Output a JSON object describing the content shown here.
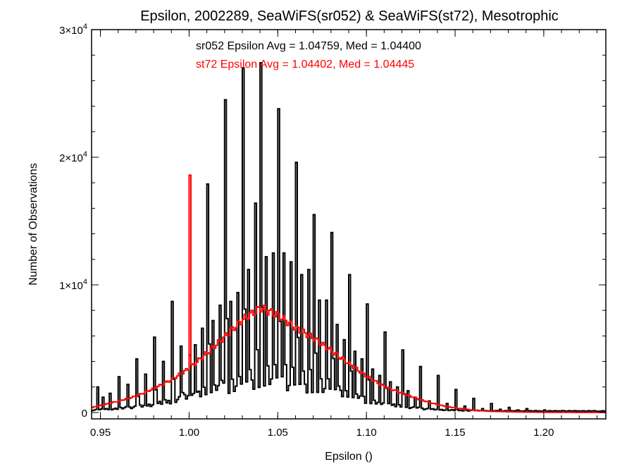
{
  "chart_data": {
    "type": "histogram",
    "title": "Epsilon, 2002289, SeaWiFS(sr052) & SeaWiFS(st72), Mesotrophic",
    "xlabel": "Epsilon ()",
    "ylabel": "Number of Observations",
    "xlim": [
      0.945,
      1.235
    ],
    "ylim": [
      -500,
      30000
    ],
    "xticks": [
      0.95,
      1.0,
      1.05,
      1.1,
      1.15,
      1.2
    ],
    "xtick_labels": [
      "0.95",
      "1.00",
      "1.05",
      "1.10",
      "1.15",
      "1.20"
    ],
    "yticks": [
      0,
      10000,
      20000,
      30000
    ],
    "ytick_labels": [
      {
        "base": "0",
        "exp": ""
      },
      {
        "base": "1×10",
        "exp": "4"
      },
      {
        "base": "2×10",
        "exp": "4"
      },
      {
        "base": "3×10",
        "exp": "4"
      }
    ],
    "annotations": [
      {
        "text": "sr052 Epsilon Avg = 1.04759, Med = 1.04400",
        "color": "#000000"
      },
      {
        "text": "st72 Epsilon Avg = 1.04402, Med = 1.04445",
        "color": "#ff0000"
      }
    ],
    "series": [
      {
        "name": "sr052",
        "color": "#000000",
        "bin_width": 0.001,
        "x_start": 0.945,
        "peaks": [
          {
            "x": 0.948,
            "y": 2000
          },
          {
            "x": 0.951,
            "y": 1200
          },
          {
            "x": 0.955,
            "y": 1500
          },
          {
            "x": 0.96,
            "y": 2800
          },
          {
            "x": 0.965,
            "y": 2200
          },
          {
            "x": 0.97,
            "y": 4200
          },
          {
            "x": 0.975,
            "y": 3000
          },
          {
            "x": 0.98,
            "y": 5900
          },
          {
            "x": 0.985,
            "y": 4000
          },
          {
            "x": 0.99,
            "y": 8700
          },
          {
            "x": 0.995,
            "y": 5200
          },
          {
            "x": 1.0,
            "y": 4500
          },
          {
            "x": 1.003,
            "y": 5300
          },
          {
            "x": 1.007,
            "y": 6600
          },
          {
            "x": 1.01,
            "y": 17900
          },
          {
            "x": 1.013,
            "y": 7200
          },
          {
            "x": 1.017,
            "y": 8400
          },
          {
            "x": 1.02,
            "y": 24500
          },
          {
            "x": 1.023,
            "y": 8700
          },
          {
            "x": 1.027,
            "y": 9400
          },
          {
            "x": 1.03,
            "y": 27000
          },
          {
            "x": 1.033,
            "y": 11200
          },
          {
            "x": 1.037,
            "y": 16400
          },
          {
            "x": 1.04,
            "y": 27400
          },
          {
            "x": 1.043,
            "y": 12200
          },
          {
            "x": 1.047,
            "y": 12500
          },
          {
            "x": 1.05,
            "y": 23800
          },
          {
            "x": 1.053,
            "y": 12500
          },
          {
            "x": 1.057,
            "y": 11800
          },
          {
            "x": 1.06,
            "y": 19600
          },
          {
            "x": 1.063,
            "y": 10800
          },
          {
            "x": 1.067,
            "y": 11200
          },
          {
            "x": 1.07,
            "y": 15500
          },
          {
            "x": 1.073,
            "y": 8800
          },
          {
            "x": 1.077,
            "y": 8800
          },
          {
            "x": 1.08,
            "y": 14100
          },
          {
            "x": 1.083,
            "y": 6900
          },
          {
            "x": 1.087,
            "y": 5700
          },
          {
            "x": 1.09,
            "y": 10800
          },
          {
            "x": 1.093,
            "y": 4800
          },
          {
            "x": 1.097,
            "y": 4200
          },
          {
            "x": 1.1,
            "y": 8500
          },
          {
            "x": 1.103,
            "y": 3400
          },
          {
            "x": 1.107,
            "y": 2900
          },
          {
            "x": 1.11,
            "y": 6300
          },
          {
            "x": 1.113,
            "y": 2400
          },
          {
            "x": 1.117,
            "y": 2000
          },
          {
            "x": 1.12,
            "y": 4900
          },
          {
            "x": 1.123,
            "y": 1700
          },
          {
            "x": 1.127,
            "y": 1200
          },
          {
            "x": 1.13,
            "y": 3600
          },
          {
            "x": 1.135,
            "y": 900
          },
          {
            "x": 1.14,
            "y": 2900
          },
          {
            "x": 1.145,
            "y": 700
          },
          {
            "x": 1.15,
            "y": 1800
          },
          {
            "x": 1.155,
            "y": 500
          },
          {
            "x": 1.16,
            "y": 1100
          },
          {
            "x": 1.165,
            "y": 300
          },
          {
            "x": 1.17,
            "y": 700
          },
          {
            "x": 1.175,
            "y": 250
          },
          {
            "x": 1.18,
            "y": 400
          },
          {
            "x": 1.185,
            "y": 200
          },
          {
            "x": 1.19,
            "y": 300
          },
          {
            "x": 1.2,
            "y": 200
          },
          {
            "x": 1.21,
            "y": 150
          },
          {
            "x": 1.22,
            "y": 120
          },
          {
            "x": 1.23,
            "y": 100
          }
        ]
      },
      {
        "name": "st72",
        "color": "#ff0000",
        "bin_width": 0.001,
        "x_start": 0.945,
        "curve": [
          {
            "x": 0.945,
            "y": 400
          },
          {
            "x": 0.96,
            "y": 900
          },
          {
            "x": 0.97,
            "y": 1300
          },
          {
            "x": 0.98,
            "y": 1900
          },
          {
            "x": 0.99,
            "y": 2600
          },
          {
            "x": 1.0,
            "y": 3500
          },
          {
            "x": 1.01,
            "y": 4700
          },
          {
            "x": 1.02,
            "y": 6000
          },
          {
            "x": 1.03,
            "y": 7300
          },
          {
            "x": 1.04,
            "y": 8200
          },
          {
            "x": 1.05,
            "y": 7600
          },
          {
            "x": 1.06,
            "y": 6600
          },
          {
            "x": 1.07,
            "y": 5800
          },
          {
            "x": 1.08,
            "y": 4800
          },
          {
            "x": 1.09,
            "y": 3800
          },
          {
            "x": 1.1,
            "y": 2800
          },
          {
            "x": 1.11,
            "y": 2000
          },
          {
            "x": 1.12,
            "y": 1500
          },
          {
            "x": 1.13,
            "y": 1000
          },
          {
            "x": 1.14,
            "y": 600
          },
          {
            "x": 1.15,
            "y": 350
          },
          {
            "x": 1.16,
            "y": 180
          },
          {
            "x": 1.17,
            "y": 90
          },
          {
            "x": 1.185,
            "y": 40
          },
          {
            "x": 1.2,
            "y": 15
          },
          {
            "x": 1.235,
            "y": 0
          }
        ],
        "spike": {
          "x": 1.0,
          "y": 18600
        }
      }
    ]
  }
}
